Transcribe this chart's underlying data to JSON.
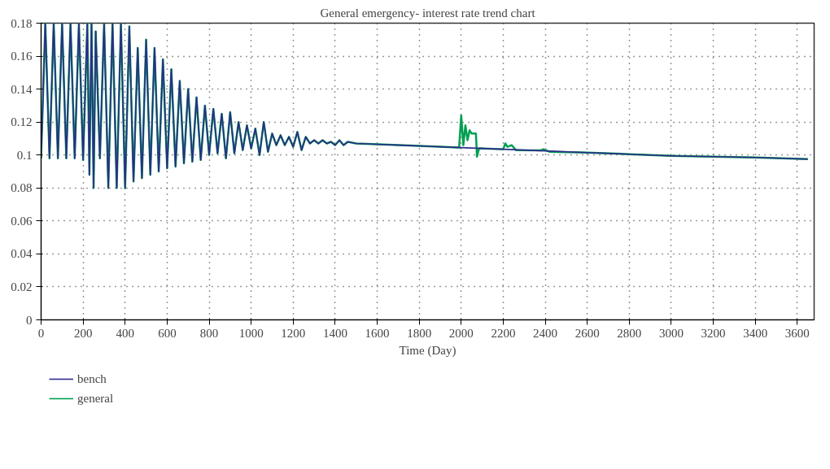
{
  "chart_data": {
    "type": "line",
    "title": "General emergency- interest rate trend chart",
    "xlabel": "Time (Day)",
    "xlim": [
      0,
      3680
    ],
    "xticks": [
      0,
      200,
      400,
      600,
      800,
      1000,
      1200,
      1400,
      1600,
      1800,
      2000,
      2200,
      2400,
      2600,
      2800,
      3000,
      3200,
      3400,
      3600
    ],
    "ylim": [
      0,
      0.18
    ],
    "yticks": [
      0,
      0.02,
      0.04,
      0.06,
      0.08,
      0.1,
      0.12,
      0.14,
      0.16,
      0.18
    ],
    "grid": true,
    "legend": "bottom left",
    "series": [
      {
        "name": "general",
        "color": "#00a050",
        "x": [
          0,
          20,
          40,
          60,
          80,
          100,
          120,
          140,
          160,
          180,
          200,
          220,
          230,
          240,
          250,
          260,
          280,
          300,
          320,
          340,
          360,
          380,
          400,
          420,
          440,
          460,
          480,
          500,
          520,
          540,
          560,
          580,
          600,
          620,
          640,
          660,
          680,
          700,
          720,
          740,
          760,
          780,
          800,
          820,
          840,
          860,
          880,
          900,
          920,
          940,
          960,
          980,
          1000,
          1020,
          1040,
          1060,
          1080,
          1100,
          1120,
          1140,
          1160,
          1180,
          1200,
          1220,
          1240,
          1260,
          1280,
          1300,
          1320,
          1340,
          1360,
          1380,
          1400,
          1420,
          1440,
          1460,
          1500,
          1600,
          1800,
          1990,
          2000,
          2010,
          2020,
          2030,
          2040,
          2050,
          2070,
          2075,
          2085,
          2200,
          2210,
          2220,
          2240,
          2260,
          2380,
          2390,
          2420,
          2600,
          2800,
          3000,
          3200,
          3400,
          3650
        ],
        "values": [
          0.098,
          0.18,
          0.098,
          0.18,
          0.098,
          0.18,
          0.098,
          0.18,
          0.098,
          0.18,
          0.097,
          0.18,
          0.088,
          0.18,
          0.08,
          0.175,
          0.098,
          0.18,
          0.08,
          0.18,
          0.08,
          0.18,
          0.08,
          0.178,
          0.084,
          0.165,
          0.086,
          0.17,
          0.088,
          0.165,
          0.09,
          0.158,
          0.092,
          0.152,
          0.093,
          0.145,
          0.095,
          0.14,
          0.096,
          0.135,
          0.097,
          0.13,
          0.1,
          0.128,
          0.101,
          0.125,
          0.098,
          0.126,
          0.101,
          0.12,
          0.103,
          0.118,
          0.104,
          0.116,
          0.1,
          0.12,
          0.102,
          0.113,
          0.106,
          0.112,
          0.106,
          0.111,
          0.105,
          0.114,
          0.103,
          0.111,
          0.107,
          0.109,
          0.107,
          0.109,
          0.107,
          0.108,
          0.106,
          0.109,
          0.106,
          0.108,
          0.107,
          0.1065,
          0.1055,
          0.1045,
          0.124,
          0.106,
          0.118,
          0.109,
          0.115,
          0.113,
          0.113,
          0.099,
          0.104,
          0.1035,
          0.107,
          0.105,
          0.106,
          0.103,
          0.1028,
          0.1035,
          0.102,
          0.1015,
          0.1005,
          0.0995,
          0.099,
          0.0985,
          0.0975
        ]
      },
      {
        "name": "bench",
        "color": "#2e2a8c",
        "x": [
          0,
          20,
          40,
          60,
          80,
          100,
          120,
          140,
          160,
          180,
          200,
          220,
          230,
          240,
          250,
          260,
          280,
          300,
          320,
          340,
          360,
          380,
          400,
          420,
          440,
          460,
          480,
          500,
          520,
          540,
          560,
          580,
          600,
          620,
          640,
          660,
          680,
          700,
          720,
          740,
          760,
          780,
          800,
          820,
          840,
          860,
          880,
          900,
          920,
          940,
          960,
          980,
          1000,
          1020,
          1040,
          1060,
          1080,
          1100,
          1120,
          1140,
          1160,
          1180,
          1200,
          1220,
          1240,
          1260,
          1280,
          1300,
          1320,
          1340,
          1360,
          1380,
          1400,
          1420,
          1440,
          1460,
          1500,
          1600,
          1800,
          2000,
          2200,
          2400,
          2600,
          2800,
          3000,
          3200,
          3400,
          3650
        ],
        "values": [
          0.098,
          0.18,
          0.098,
          0.18,
          0.098,
          0.18,
          0.098,
          0.18,
          0.098,
          0.18,
          0.097,
          0.18,
          0.088,
          0.18,
          0.08,
          0.175,
          0.098,
          0.18,
          0.08,
          0.18,
          0.08,
          0.18,
          0.08,
          0.178,
          0.084,
          0.165,
          0.086,
          0.17,
          0.088,
          0.165,
          0.09,
          0.158,
          0.092,
          0.152,
          0.093,
          0.145,
          0.095,
          0.14,
          0.096,
          0.135,
          0.097,
          0.13,
          0.1,
          0.128,
          0.101,
          0.125,
          0.098,
          0.126,
          0.101,
          0.12,
          0.103,
          0.118,
          0.104,
          0.116,
          0.1,
          0.12,
          0.102,
          0.113,
          0.106,
          0.112,
          0.106,
          0.111,
          0.105,
          0.114,
          0.103,
          0.111,
          0.107,
          0.109,
          0.107,
          0.109,
          0.107,
          0.108,
          0.106,
          0.109,
          0.106,
          0.108,
          0.107,
          0.1065,
          0.1055,
          0.1045,
          0.1035,
          0.1025,
          0.1015,
          0.1005,
          0.0995,
          0.099,
          0.0985,
          0.0975
        ]
      }
    ]
  }
}
